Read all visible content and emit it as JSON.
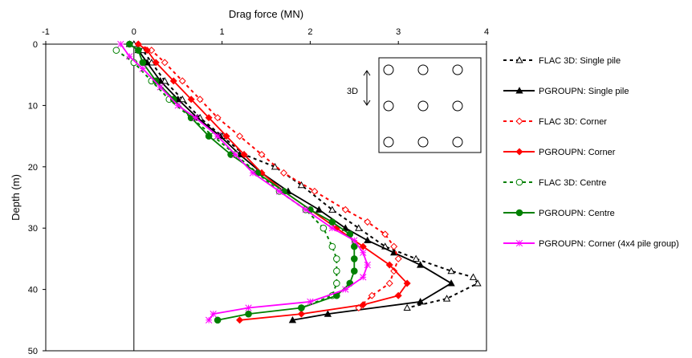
{
  "chart_data": {
    "type": "line",
    "title": "",
    "xlabel": "Drag force (MN)",
    "ylabel": "Depth (m)",
    "x_axis_position": "top",
    "y_inverted": true,
    "xlim": [
      -1,
      4
    ],
    "ylim": [
      0,
      50
    ],
    "xticks": [
      "-1",
      "0",
      "1",
      "2",
      "3",
      "4"
    ],
    "yticks": [
      "0",
      "10",
      "20",
      "30",
      "40",
      "50"
    ],
    "grid": false,
    "legend_position": "right",
    "inset": {
      "label": "3D",
      "pile_rows": 3,
      "pile_cols": 3
    },
    "series": [
      {
        "name": "FLAC 3D: Single pile",
        "color": "#000000",
        "dash": true,
        "marker": "triangle-open",
        "points": [
          [
            0,
            0
          ],
          [
            0.1,
            1
          ],
          [
            0.2,
            3
          ],
          [
            0.35,
            6
          ],
          [
            0.55,
            9
          ],
          [
            0.75,
            12
          ],
          [
            1.0,
            15
          ],
          [
            1.25,
            18
          ],
          [
            1.6,
            20
          ],
          [
            1.9,
            23
          ],
          [
            2.25,
            27
          ],
          [
            2.55,
            30
          ],
          [
            2.85,
            33
          ],
          [
            3.2,
            35
          ],
          [
            3.6,
            37
          ],
          [
            3.85,
            38
          ],
          [
            3.9,
            39
          ],
          [
            3.55,
            41.5
          ],
          [
            3.1,
            43
          ]
        ]
      },
      {
        "name": "PGROUPN: Single pile",
        "color": "#000000",
        "dash": false,
        "marker": "triangle-filled",
        "points": [
          [
            -0.05,
            0
          ],
          [
            0.05,
            1
          ],
          [
            0.15,
            3
          ],
          [
            0.3,
            6
          ],
          [
            0.5,
            9
          ],
          [
            0.72,
            12
          ],
          [
            0.98,
            15
          ],
          [
            1.2,
            18
          ],
          [
            1.45,
            21
          ],
          [
            1.75,
            24
          ],
          [
            2.1,
            27
          ],
          [
            2.4,
            30
          ],
          [
            2.65,
            32
          ],
          [
            2.95,
            34
          ],
          [
            3.25,
            36
          ],
          [
            3.6,
            39
          ],
          [
            3.25,
            42
          ],
          [
            2.2,
            44
          ],
          [
            1.8,
            45
          ]
        ]
      },
      {
        "name": "FLAC 3D: Corner",
        "color": "#ff0000",
        "dash": true,
        "marker": "diamond-open",
        "points": [
          [
            0.05,
            0
          ],
          [
            0.2,
            1
          ],
          [
            0.35,
            3
          ],
          [
            0.55,
            6
          ],
          [
            0.75,
            9
          ],
          [
            0.95,
            12
          ],
          [
            1.2,
            15
          ],
          [
            1.45,
            18
          ],
          [
            1.7,
            21
          ],
          [
            2.05,
            24
          ],
          [
            2.4,
            27
          ],
          [
            2.65,
            29
          ],
          [
            2.85,
            31
          ],
          [
            2.95,
            33
          ],
          [
            3.0,
            35
          ],
          [
            2.95,
            37
          ],
          [
            2.9,
            39
          ],
          [
            2.7,
            41
          ],
          [
            2.55,
            43
          ]
        ]
      },
      {
        "name": "PGROUPN: Corner",
        "color": "#ff0000",
        "dash": false,
        "marker": "diamond-filled",
        "points": [
          [
            0.05,
            0
          ],
          [
            0.15,
            1
          ],
          [
            0.25,
            3
          ],
          [
            0.45,
            6
          ],
          [
            0.65,
            9
          ],
          [
            0.85,
            12
          ],
          [
            1.05,
            15
          ],
          [
            1.25,
            18
          ],
          [
            1.45,
            21
          ],
          [
            1.7,
            24
          ],
          [
            2.0,
            27
          ],
          [
            2.3,
            30
          ],
          [
            2.6,
            33
          ],
          [
            2.9,
            36
          ],
          [
            3.1,
            39
          ],
          [
            3.0,
            41
          ],
          [
            2.6,
            42.5
          ],
          [
            1.9,
            44
          ],
          [
            1.2,
            45
          ]
        ]
      },
      {
        "name": "FLAC 3D: Centre",
        "color": "#008000",
        "dash": true,
        "marker": "circle-open",
        "points": [
          [
            -0.2,
            1
          ],
          [
            0,
            3
          ],
          [
            0.2,
            6
          ],
          [
            0.4,
            9
          ],
          [
            0.65,
            12
          ],
          [
            0.9,
            15
          ],
          [
            1.15,
            18
          ],
          [
            1.4,
            21
          ],
          [
            1.65,
            24
          ],
          [
            1.95,
            27
          ],
          [
            2.15,
            30
          ],
          [
            2.25,
            33
          ],
          [
            2.3,
            35
          ],
          [
            2.3,
            37
          ],
          [
            2.3,
            39
          ],
          [
            2.25,
            41
          ],
          [
            1.9,
            43
          ]
        ]
      },
      {
        "name": "PGROUPN: Centre",
        "color": "#008000",
        "dash": false,
        "marker": "circle-filled",
        "points": [
          [
            -0.05,
            0
          ],
          [
            0.05,
            1
          ],
          [
            0.1,
            3
          ],
          [
            0.25,
            6
          ],
          [
            0.45,
            9
          ],
          [
            0.65,
            12
          ],
          [
            0.85,
            15
          ],
          [
            1.1,
            18
          ],
          [
            1.4,
            21
          ],
          [
            1.7,
            24
          ],
          [
            2.0,
            27
          ],
          [
            2.25,
            29
          ],
          [
            2.45,
            31
          ],
          [
            2.5,
            33
          ],
          [
            2.5,
            35
          ],
          [
            2.5,
            37
          ],
          [
            2.45,
            39
          ],
          [
            2.3,
            41
          ],
          [
            1.9,
            43
          ],
          [
            1.3,
            44
          ],
          [
            0.95,
            45
          ]
        ]
      },
      {
        "name": "PGROUPN: Corner (4x4 pile group)",
        "color": "#ff00ff",
        "dash": false,
        "marker": "asterisk",
        "points": [
          [
            -0.15,
            0
          ],
          [
            -0.05,
            2
          ],
          [
            0.1,
            4
          ],
          [
            0.3,
            7
          ],
          [
            0.5,
            10
          ],
          [
            0.7,
            12
          ],
          [
            0.95,
            15
          ],
          [
            1.15,
            18
          ],
          [
            1.35,
            21
          ],
          [
            1.65,
            24
          ],
          [
            1.95,
            27
          ],
          [
            2.25,
            30
          ],
          [
            2.5,
            32
          ],
          [
            2.6,
            34
          ],
          [
            2.65,
            36
          ],
          [
            2.6,
            38
          ],
          [
            2.4,
            40
          ],
          [
            2.0,
            42
          ],
          [
            1.3,
            43
          ],
          [
            0.9,
            44
          ],
          [
            0.85,
            45
          ]
        ]
      }
    ]
  }
}
